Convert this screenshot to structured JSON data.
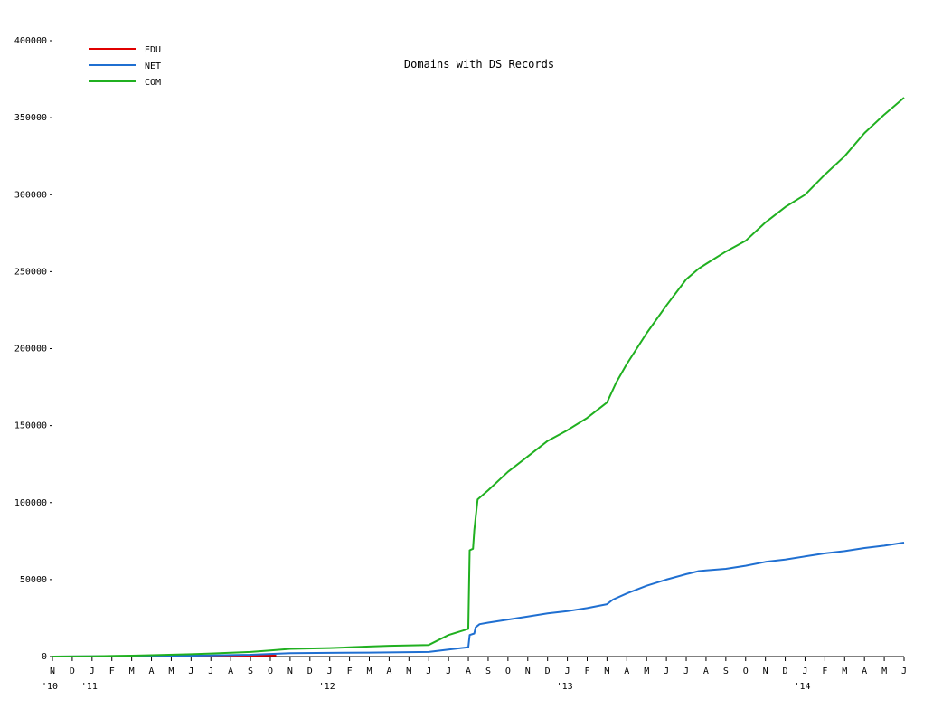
{
  "chart_data": {
    "type": "line",
    "title": "Domains with DS Records",
    "xlabel": "",
    "ylabel": "",
    "ylim": [
      0,
      400000
    ],
    "yticks": [
      0,
      50000,
      100000,
      150000,
      200000,
      250000,
      300000,
      350000,
      400000
    ],
    "ytick_labels": [
      "0",
      "50000",
      "100000",
      "150000",
      "200000",
      "250000",
      "300000",
      "350000",
      "400000"
    ],
    "x_unit": "month",
    "x_start": "2010-11",
    "x_end": "2014-06",
    "xticks": [
      {
        "month": "N",
        "year": "'10"
      },
      {
        "month": "D",
        "year": ""
      },
      {
        "month": "J",
        "year": "'11"
      },
      {
        "month": "F",
        "year": ""
      },
      {
        "month": "M",
        "year": ""
      },
      {
        "month": "A",
        "year": ""
      },
      {
        "month": "M",
        "year": ""
      },
      {
        "month": "J",
        "year": ""
      },
      {
        "month": "J",
        "year": ""
      },
      {
        "month": "A",
        "year": ""
      },
      {
        "month": "S",
        "year": ""
      },
      {
        "month": "O",
        "year": ""
      },
      {
        "month": "N",
        "year": ""
      },
      {
        "month": "D",
        "year": ""
      },
      {
        "month": "J",
        "year": "'12"
      },
      {
        "month": "F",
        "year": ""
      },
      {
        "month": "M",
        "year": ""
      },
      {
        "month": "A",
        "year": ""
      },
      {
        "month": "M",
        "year": ""
      },
      {
        "month": "J",
        "year": ""
      },
      {
        "month": "J",
        "year": ""
      },
      {
        "month": "A",
        "year": ""
      },
      {
        "month": "S",
        "year": ""
      },
      {
        "month": "O",
        "year": ""
      },
      {
        "month": "N",
        "year": ""
      },
      {
        "month": "D",
        "year": ""
      },
      {
        "month": "J",
        "year": "'13"
      },
      {
        "month": "F",
        "year": ""
      },
      {
        "month": "M",
        "year": ""
      },
      {
        "month": "A",
        "year": ""
      },
      {
        "month": "M",
        "year": ""
      },
      {
        "month": "J",
        "year": ""
      },
      {
        "month": "J",
        "year": ""
      },
      {
        "month": "A",
        "year": ""
      },
      {
        "month": "S",
        "year": ""
      },
      {
        "month": "O",
        "year": ""
      },
      {
        "month": "N",
        "year": ""
      },
      {
        "month": "D",
        "year": ""
      },
      {
        "month": "J",
        "year": "'14"
      },
      {
        "month": "F",
        "year": ""
      },
      {
        "month": "M",
        "year": ""
      },
      {
        "month": "A",
        "year": ""
      },
      {
        "month": "M",
        "year": ""
      },
      {
        "month": "J",
        "year": ""
      }
    ],
    "grid": false,
    "legend_position": "top-left",
    "series": [
      {
        "name": "EDU",
        "color": "#e00000",
        "points": [
          [
            "2010-11-01",
            0
          ],
          [
            "2011-03-01",
            100
          ],
          [
            "2011-07-01",
            300
          ],
          [
            "2011-09-01",
            600
          ],
          [
            "2011-10-10",
            700
          ]
        ]
      },
      {
        "name": "NET",
        "color": "#1f6fd1",
        "points": [
          [
            "2010-11-01",
            0
          ],
          [
            "2011-01-01",
            100
          ],
          [
            "2011-04-01",
            300
          ],
          [
            "2011-07-01",
            700
          ],
          [
            "2011-09-01",
            1200
          ],
          [
            "2011-10-01",
            1700
          ],
          [
            "2011-11-01",
            2200
          ],
          [
            "2012-01-01",
            2400
          ],
          [
            "2012-03-01",
            2600
          ],
          [
            "2012-05-01",
            2900
          ],
          [
            "2012-06-01",
            3000
          ],
          [
            "2012-07-01",
            4500
          ],
          [
            "2012-07-20",
            5500
          ],
          [
            "2012-08-01",
            6000
          ],
          [
            "2012-08-03",
            14000
          ],
          [
            "2012-08-10",
            15000
          ],
          [
            "2012-08-12",
            19000
          ],
          [
            "2012-08-18",
            21000
          ],
          [
            "2012-09-01",
            22000
          ],
          [
            "2012-10-01",
            24000
          ],
          [
            "2012-11-01",
            26000
          ],
          [
            "2012-12-01",
            28000
          ],
          [
            "2013-01-01",
            29500
          ],
          [
            "2013-02-01",
            31500
          ],
          [
            "2013-03-01",
            34000
          ],
          [
            "2013-03-10",
            37000
          ],
          [
            "2013-04-01",
            41000
          ],
          [
            "2013-05-01",
            46000
          ],
          [
            "2013-06-01",
            50000
          ],
          [
            "2013-07-01",
            53500
          ],
          [
            "2013-07-20",
            55500
          ],
          [
            "2013-08-01",
            56000
          ],
          [
            "2013-09-01",
            57000
          ],
          [
            "2013-10-01",
            59000
          ],
          [
            "2013-11-01",
            61500
          ],
          [
            "2013-12-01",
            63000
          ],
          [
            "2014-01-01",
            65000
          ],
          [
            "2014-02-01",
            67000
          ],
          [
            "2014-03-01",
            68500
          ],
          [
            "2014-04-01",
            70500
          ],
          [
            "2014-05-01",
            72000
          ],
          [
            "2014-06-01",
            74000
          ]
        ]
      },
      {
        "name": "COM",
        "color": "#20b020",
        "points": [
          [
            "2010-11-01",
            0
          ],
          [
            "2011-01-01",
            200
          ],
          [
            "2011-03-01",
            600
          ],
          [
            "2011-04-01",
            900
          ],
          [
            "2011-06-01",
            1500
          ],
          [
            "2011-07-01",
            2000
          ],
          [
            "2011-08-01",
            2500
          ],
          [
            "2011-09-01",
            3000
          ],
          [
            "2011-10-01",
            4000
          ],
          [
            "2011-11-01",
            5000
          ],
          [
            "2012-01-01",
            5500
          ],
          [
            "2012-02-01",
            6000
          ],
          [
            "2012-03-01",
            6500
          ],
          [
            "2012-04-01",
            7000
          ],
          [
            "2012-06-01",
            7500
          ],
          [
            "2012-07-01",
            14000
          ],
          [
            "2012-07-31",
            18000
          ],
          [
            "2012-08-01",
            18500
          ],
          [
            "2012-08-03",
            69000
          ],
          [
            "2012-08-08",
            70000
          ],
          [
            "2012-08-10",
            82000
          ],
          [
            "2012-08-15",
            102000
          ],
          [
            "2012-09-01",
            108000
          ],
          [
            "2012-10-01",
            120000
          ],
          [
            "2012-11-01",
            130000
          ],
          [
            "2012-12-01",
            140000
          ],
          [
            "2013-01-01",
            147000
          ],
          [
            "2013-02-01",
            155000
          ],
          [
            "2013-03-01",
            165000
          ],
          [
            "2013-03-15",
            178000
          ],
          [
            "2013-04-01",
            190000
          ],
          [
            "2013-05-01",
            210000
          ],
          [
            "2013-06-01",
            228000
          ],
          [
            "2013-07-01",
            245000
          ],
          [
            "2013-07-20",
            252000
          ],
          [
            "2013-08-01",
            255000
          ],
          [
            "2013-09-01",
            263000
          ],
          [
            "2013-10-01",
            270000
          ],
          [
            "2013-11-01",
            282000
          ],
          [
            "2013-12-01",
            292000
          ],
          [
            "2014-01-01",
            300000
          ],
          [
            "2014-02-01",
            313000
          ],
          [
            "2014-03-01",
            325000
          ],
          [
            "2014-04-01",
            340000
          ],
          [
            "2014-05-01",
            352000
          ],
          [
            "2014-06-01",
            363000
          ]
        ]
      }
    ]
  }
}
